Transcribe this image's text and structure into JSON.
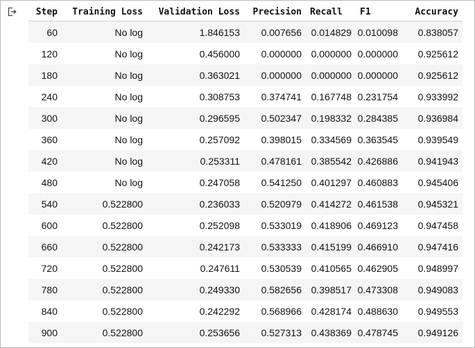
{
  "columns": [
    "Step",
    "Training Loss",
    "Validation Loss",
    "Precision",
    "Recall",
    "F1",
    "Accuracy"
  ],
  "rows": [
    [
      "60",
      "No log",
      "1.846153",
      "0.007656",
      "0.014829",
      "0.010098",
      "0.838057"
    ],
    [
      "120",
      "No log",
      "0.456000",
      "0.000000",
      "0.000000",
      "0.000000",
      "0.925612"
    ],
    [
      "180",
      "No log",
      "0.363021",
      "0.000000",
      "0.000000",
      "0.000000",
      "0.925612"
    ],
    [
      "240",
      "No log",
      "0.308753",
      "0.374741",
      "0.167748",
      "0.231754",
      "0.933992"
    ],
    [
      "300",
      "No log",
      "0.296595",
      "0.502347",
      "0.198332",
      "0.284385",
      "0.936984"
    ],
    [
      "360",
      "No log",
      "0.257092",
      "0.398015",
      "0.334569",
      "0.363545",
      "0.939549"
    ],
    [
      "420",
      "No log",
      "0.253311",
      "0.478161",
      "0.385542",
      "0.426886",
      "0.941943"
    ],
    [
      "480",
      "No log",
      "0.247058",
      "0.541250",
      "0.401297",
      "0.460883",
      "0.945406"
    ],
    [
      "540",
      "0.522800",
      "0.236033",
      "0.520979",
      "0.414272",
      "0.461538",
      "0.945321"
    ],
    [
      "600",
      "0.522800",
      "0.252098",
      "0.533019",
      "0.418906",
      "0.469123",
      "0.947458"
    ],
    [
      "660",
      "0.522800",
      "0.242173",
      "0.533333",
      "0.415199",
      "0.466910",
      "0.947416"
    ],
    [
      "720",
      "0.522800",
      "0.247611",
      "0.530539",
      "0.410565",
      "0.462905",
      "0.948997"
    ],
    [
      "780",
      "0.522800",
      "0.249330",
      "0.582656",
      "0.398517",
      "0.473308",
      "0.949083"
    ],
    [
      "840",
      "0.522800",
      "0.242292",
      "0.568966",
      "0.428174",
      "0.488630",
      "0.949553"
    ],
    [
      "900",
      "0.522800",
      "0.253656",
      "0.527313",
      "0.438369",
      "0.478745",
      "0.949126"
    ]
  ],
  "icons": {
    "output": "output-arrow-icon"
  }
}
